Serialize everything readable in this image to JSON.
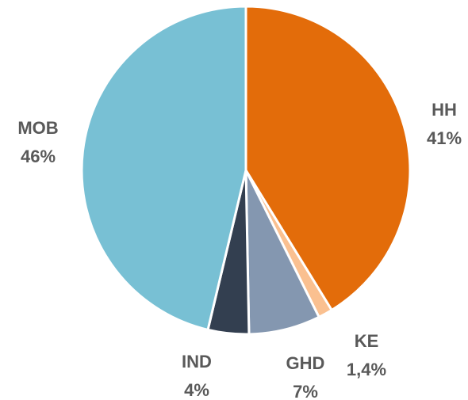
{
  "chart_data": {
    "type": "pie",
    "categories": [
      "HH",
      "KE",
      "GHD",
      "IND",
      "MOB"
    ],
    "values": [
      41,
      1.4,
      7,
      4,
      46
    ],
    "value_labels": [
      "41%",
      "1,4%",
      "7%",
      "4%",
      "46%"
    ],
    "colors": [
      "#E36C0A",
      "#FAC090",
      "#8497B0",
      "#333F50",
      "#78C0D4"
    ]
  }
}
